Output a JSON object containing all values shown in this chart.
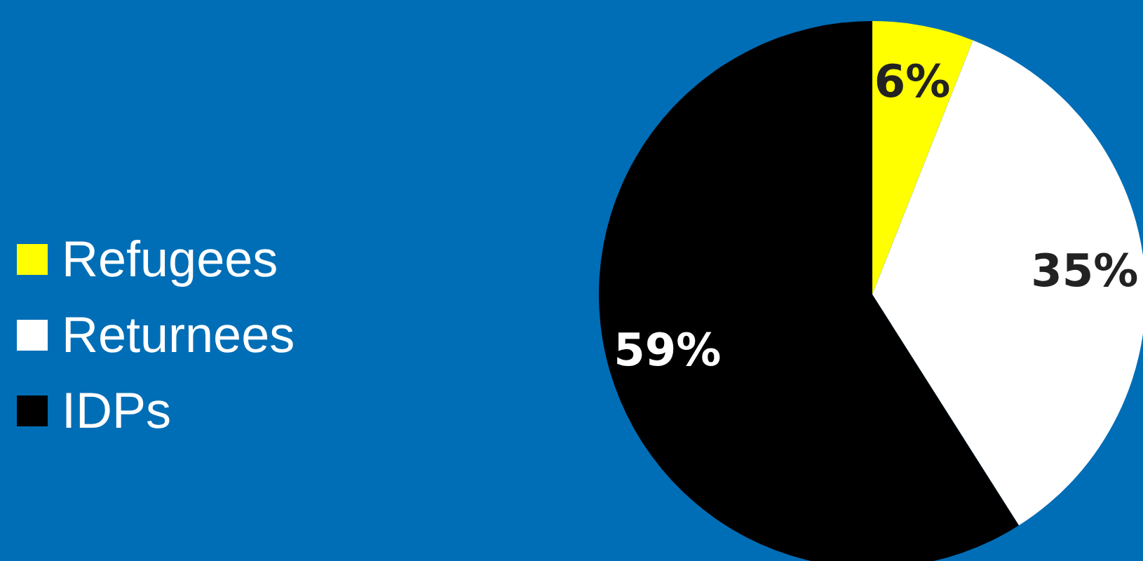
{
  "chart_data": {
    "type": "pie",
    "categories": [
      "Refugees",
      "Returnees",
      "IDPs"
    ],
    "values": [
      6,
      35,
      59
    ],
    "colors": [
      "#ffff00",
      "#ffffff",
      "#000000"
    ],
    "value_labels": [
      "6%",
      "35%",
      "59%"
    ],
    "legend": "left"
  }
}
